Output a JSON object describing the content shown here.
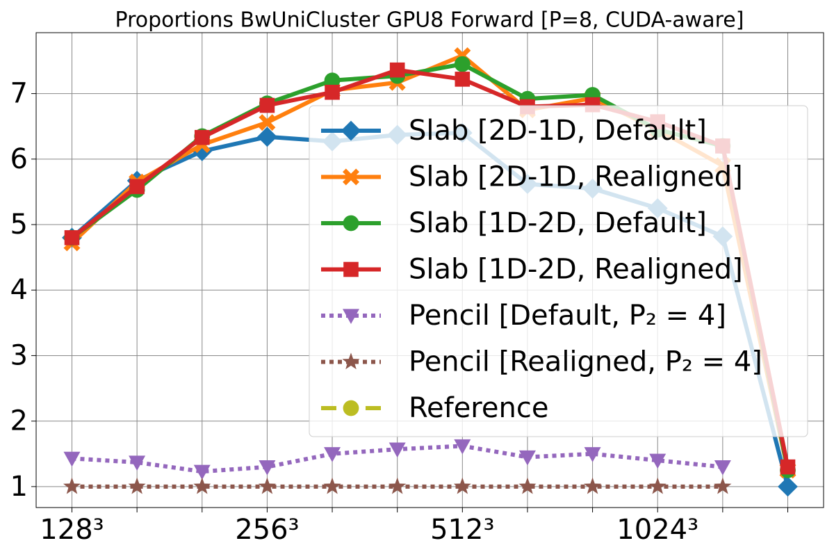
{
  "chart_data": {
    "type": "line",
    "title": "Proportions BwUniCluster GPU8 Forward [P=8, CUDA-aware]",
    "categories": [
      "128³",
      null,
      null,
      "256³",
      null,
      null,
      "512³",
      null,
      null,
      "1024³",
      null,
      null
    ],
    "ylim": [
      0.68,
      7.93
    ],
    "yticks": [
      1,
      2,
      3,
      4,
      5,
      6,
      7
    ],
    "grid": true,
    "legend": "center right",
    "series": [
      {
        "name": "Slab [2D-1D, Default]",
        "color": "#1f77b4",
        "marker": "diamond",
        "linestyle": "solid",
        "values": [
          4.8,
          5.67,
          6.12,
          6.34,
          6.27,
          6.37,
          6.4,
          5.62,
          5.55,
          5.25,
          4.82,
          1.0
        ]
      },
      {
        "name": "Slab [2D-1D, Realigned]",
        "color": "#ff7f0e",
        "marker": "x",
        "linestyle": "solid",
        "values": [
          4.72,
          5.65,
          6.22,
          6.56,
          7.05,
          7.17,
          7.58,
          6.75,
          6.93,
          6.45,
          5.9,
          1.25
        ]
      },
      {
        "name": "Slab [1D-2D, Default]",
        "color": "#2ca02c",
        "marker": "circle",
        "linestyle": "solid",
        "values": [
          4.8,
          5.53,
          6.35,
          6.85,
          7.2,
          7.27,
          7.45,
          6.92,
          6.98,
          6.45,
          6.2,
          1.25
        ]
      },
      {
        "name": "Slab [1D-2D, Realigned]",
        "color": "#d62728",
        "marker": "square",
        "linestyle": "solid",
        "values": [
          4.8,
          5.58,
          6.33,
          6.82,
          7.02,
          7.36,
          7.22,
          6.8,
          6.83,
          6.57,
          6.2,
          1.3
        ]
      },
      {
        "name": "Pencil [Default, P₂ = 4]",
        "color": "#9467bd",
        "marker": "triangle-down",
        "linestyle": "dotted",
        "values": [
          1.43,
          1.37,
          1.23,
          1.3,
          1.5,
          1.57,
          1.62,
          1.45,
          1.5,
          1.4,
          1.3,
          null
        ]
      },
      {
        "name": "Pencil [Realigned, P₂ = 4]",
        "color": "#8c564b",
        "marker": "star",
        "linestyle": "dotted",
        "values": [
          1.0,
          1.0,
          1.0,
          1.0,
          1.0,
          1.0,
          1.0,
          1.0,
          1.0,
          1.0,
          1.0,
          null
        ]
      },
      {
        "name": "Reference",
        "color": "#bcbd22",
        "marker": "circle",
        "linestyle": "dashed",
        "values": [
          null,
          null,
          null,
          null,
          null,
          null,
          null,
          null,
          null,
          null,
          null,
          null
        ]
      }
    ]
  }
}
